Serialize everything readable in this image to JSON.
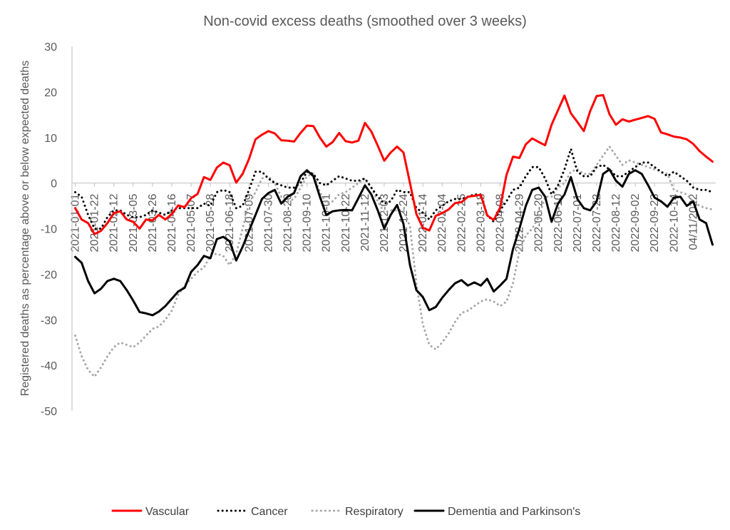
{
  "chart_data": {
    "type": "line",
    "title": "Non-covid excess deaths (smoothed over 3 weeks)",
    "xlabel": "",
    "ylabel": "Registered deaths as percentage above or below expected deaths",
    "ylim": [
      -50,
      30
    ],
    "yticks": [
      30,
      20,
      10,
      0,
      -10,
      -20,
      -30,
      -40,
      -50
    ],
    "grid": false,
    "legend_position": "bottom",
    "x_tick_labels": [
      "2021-01-01",
      "2021-01-22",
      "2021-02-12",
      "2021-03-05",
      "2021-03-26",
      "2021-04-16",
      "2021-05-07",
      "2021-05-28",
      "2021-06-18",
      "2021-07-09",
      "2021-07-30",
      "2021-08-20",
      "2021-09-10",
      "2021-10-01",
      "2021-10-22",
      "2021-11-12",
      "2021-12-03",
      "2021-12-24",
      "2022-01-14",
      "2022-02-04",
      "2022-02-25",
      "2022-03-18",
      "2022-04-08",
      "2022-04-29",
      "2022-05-20",
      "2022-06-10",
      "2022-07-01",
      "2022-07-22",
      "2022-08-12",
      "2022-09-02",
      "2022-09-23",
      "2022-10-14",
      "04/11/2022"
    ],
    "series": [
      {
        "name": "Vascular",
        "color": "#ff0000",
        "style": "solid",
        "values": [
          -5.5,
          -8,
          -8.8,
          -11.2,
          -10.5,
          -8.8,
          -6.6,
          -6.2,
          -8,
          -8.5,
          -10,
          -8,
          -8.2,
          -7,
          -8,
          -6.8,
          -4.9,
          -5.3,
          -3.3,
          -2.4,
          1.3,
          0.7,
          3.4,
          4.5,
          3.9,
          0.1,
          2,
          5.3,
          9.6,
          10.6,
          11.4,
          10.9,
          9.4,
          9.3,
          9.1,
          11,
          12.6,
          12.5,
          10,
          8,
          9,
          11,
          9.2,
          8.9,
          9.3,
          13.2,
          11.3,
          8.2,
          4.9,
          6.7,
          8,
          6.7,
          0,
          -6.8,
          -9.8,
          -10.4,
          -7.2,
          -6.6,
          -5.8,
          -4.4,
          -4.2,
          -3,
          -2.8,
          -2.6,
          -7.1,
          -8.1,
          -5.4,
          1.8,
          5.8,
          5.5,
          8.5,
          9.8,
          9,
          8.3,
          12.8,
          16,
          19.2,
          15.3,
          13.4,
          11.4,
          15.8,
          19.1,
          19.3,
          15.1,
          12.8,
          14,
          13.5,
          13.9,
          14.3,
          14.7,
          14.1,
          11.1,
          10.7,
          10.2,
          10,
          9.6,
          8.6,
          7,
          5.8,
          4.7
        ]
      },
      {
        "name": "Cancer",
        "color": "#000000",
        "style": "dotted",
        "values": [
          -2,
          -3,
          -7,
          -10,
          -10,
          -7.5,
          -6,
          -6,
          -7,
          -7.5,
          -7.5,
          -7,
          -6,
          -6.5,
          -7,
          -6,
          -5.5,
          -5.5,
          -5.5,
          -5.5,
          -4.5,
          -5,
          -2,
          -1.5,
          -2,
          -5.5,
          -5,
          -1.5,
          2.5,
          2.5,
          1,
          0,
          -0.5,
          -1,
          -1,
          0,
          2.5,
          2,
          0,
          -0.5,
          0.5,
          1.5,
          1,
          0.5,
          0.5,
          1,
          -1,
          -3,
          -4.5,
          -4,
          -1.5,
          -2,
          -2,
          -5.5,
          -6.5,
          -8,
          -6,
          -5,
          -4,
          -3.5,
          -3.5,
          -3,
          -2.5,
          -2.5,
          -7,
          -8.5,
          -6,
          -4,
          -1.5,
          -1,
          1.5,
          3.5,
          3.5,
          1,
          -2.5,
          -0.5,
          3,
          7.5,
          2.5,
          1.5,
          1.5,
          3.5,
          4,
          3,
          1.5,
          1.5,
          2.5,
          3.5,
          4.5,
          4.5,
          3.5,
          2.5,
          1.5,
          2.5,
          1.5,
          0.5,
          -1,
          -1.5,
          -1.5,
          -2
        ]
      },
      {
        "name": "Respiratory",
        "color": "#a6a6a6",
        "style": "dotted",
        "values": [
          -33.5,
          -38,
          -41,
          -42.5,
          -40.5,
          -38,
          -36,
          -35,
          -35.5,
          -36,
          -35,
          -33.5,
          -32,
          -31.5,
          -30,
          -28,
          -24.5,
          -22.5,
          -21,
          -19.5,
          -18.5,
          -16,
          -15.5,
          -16,
          -18,
          -15.5,
          -10,
          -4.5,
          -2,
          1,
          1.5,
          0,
          -3,
          -4,
          -3.5,
          -1,
          1.5,
          2,
          -2,
          -4.5,
          -4,
          -2.5,
          -2,
          -1,
          0,
          1,
          -1,
          -4,
          -6.5,
          -6,
          -6,
          -6,
          -9.5,
          -22,
          -31,
          -35.5,
          -36.5,
          -35,
          -33,
          -30.5,
          -28.5,
          -28,
          -27,
          -26,
          -25.5,
          -26,
          -27,
          -26,
          -22,
          -15,
          -11.5,
          -10,
          -7.5,
          -3,
          -3,
          -1,
          0,
          2.5,
          3,
          2,
          2,
          4,
          6,
          8,
          6,
          4,
          5,
          4.5,
          4,
          3.5,
          3,
          2.5,
          2,
          -1.5,
          -2,
          -2.5,
          -4,
          -5,
          -5.5,
          -5.8
        ]
      },
      {
        "name": "Dementia and Parkinson's",
        "color": "#000000",
        "style": "solid",
        "values": [
          -16.2,
          -17.5,
          -21.5,
          -24.2,
          -23.2,
          -21.5,
          -21,
          -21.5,
          -23.5,
          -25.8,
          -28.3,
          -28.6,
          -29,
          -28.2,
          -27,
          -25.4,
          -23.8,
          -23,
          -19.5,
          -18,
          -16,
          -16.5,
          -12.3,
          -11.8,
          -12.8,
          -17,
          -14,
          -10.5,
          -7,
          -3.5,
          -2.2,
          -1.5,
          -4.5,
          -3,
          -2.2,
          1.5,
          2.8,
          1.5,
          -3,
          -7,
          -6.2,
          -6,
          -5.9,
          -6,
          -3.3,
          -0.5,
          -2.5,
          -6,
          -10,
          -7,
          -4.8,
          -9,
          -18,
          -23.5,
          -25,
          -27.9,
          -27.2,
          -25.2,
          -23.5,
          -22,
          -21.3,
          -22.5,
          -21.8,
          -22.5,
          -21,
          -23.8,
          -22.5,
          -21,
          -14.5,
          -10,
          -5,
          -1.5,
          -1,
          -3,
          -8.5,
          -4.5,
          -2.5,
          1.3,
          -3.5,
          -5.5,
          -6,
          -4,
          2,
          3,
          0.5,
          -0.8,
          2,
          2.8,
          2,
          -0.5,
          -3.2,
          -4,
          -5.2,
          -3.2,
          -3,
          -5,
          -4,
          -8,
          -8.8,
          -13.5
        ]
      }
    ]
  }
}
